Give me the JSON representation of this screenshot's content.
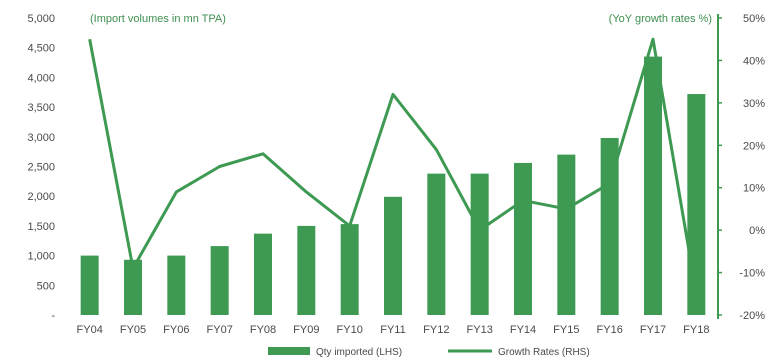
{
  "chart_data": {
    "type": "bar",
    "categories": [
      "FY04",
      "FY05",
      "FY06",
      "FY07",
      "FY08",
      "FY09",
      "FY10",
      "FY11",
      "FY12",
      "FY13",
      "FY14",
      "FY15",
      "FY16",
      "FY17",
      "FY18"
    ],
    "series": [
      {
        "name": "Qty imported (LHS)",
        "type": "bar",
        "axis": "left",
        "values": [
          1000,
          930,
          1000,
          1160,
          1370,
          1500,
          1530,
          1990,
          2380,
          2380,
          2560,
          2700,
          2980,
          4350,
          3720
        ]
      },
      {
        "name": "Growth Rates (RHS)",
        "type": "line",
        "axis": "right",
        "values": [
          45,
          -9,
          9,
          15,
          18,
          9,
          1,
          32,
          19,
          0,
          7,
          5,
          11,
          45,
          -15
        ]
      }
    ],
    "left_axis": {
      "title": "(Import volumes in mn TPA)",
      "ylim": [
        0,
        5000
      ],
      "ticks": [
        0,
        500,
        1000,
        1500,
        2000,
        2500,
        3000,
        3500,
        4000,
        4500,
        5000
      ],
      "tick_labels": [
        "-",
        "500",
        "1,000",
        "1,500",
        "2,000",
        "2,500",
        "3,000",
        "3,500",
        "4,000",
        "4,500",
        "5,000"
      ]
    },
    "right_axis": {
      "title": "(YoY growth rates %)",
      "ylim": [
        -20,
        50
      ],
      "ticks": [
        -20,
        -10,
        0,
        10,
        20,
        30,
        40,
        50
      ],
      "tick_labels": [
        "-20%",
        "-10%",
        "0%",
        "10%",
        "20%",
        "30%",
        "40%",
        "50%"
      ]
    },
    "grid": false,
    "legend_position": "bottom",
    "colors": {
      "bar": "#3e9a52",
      "line": "#3e9a52",
      "axis": "#3e9a52"
    }
  }
}
